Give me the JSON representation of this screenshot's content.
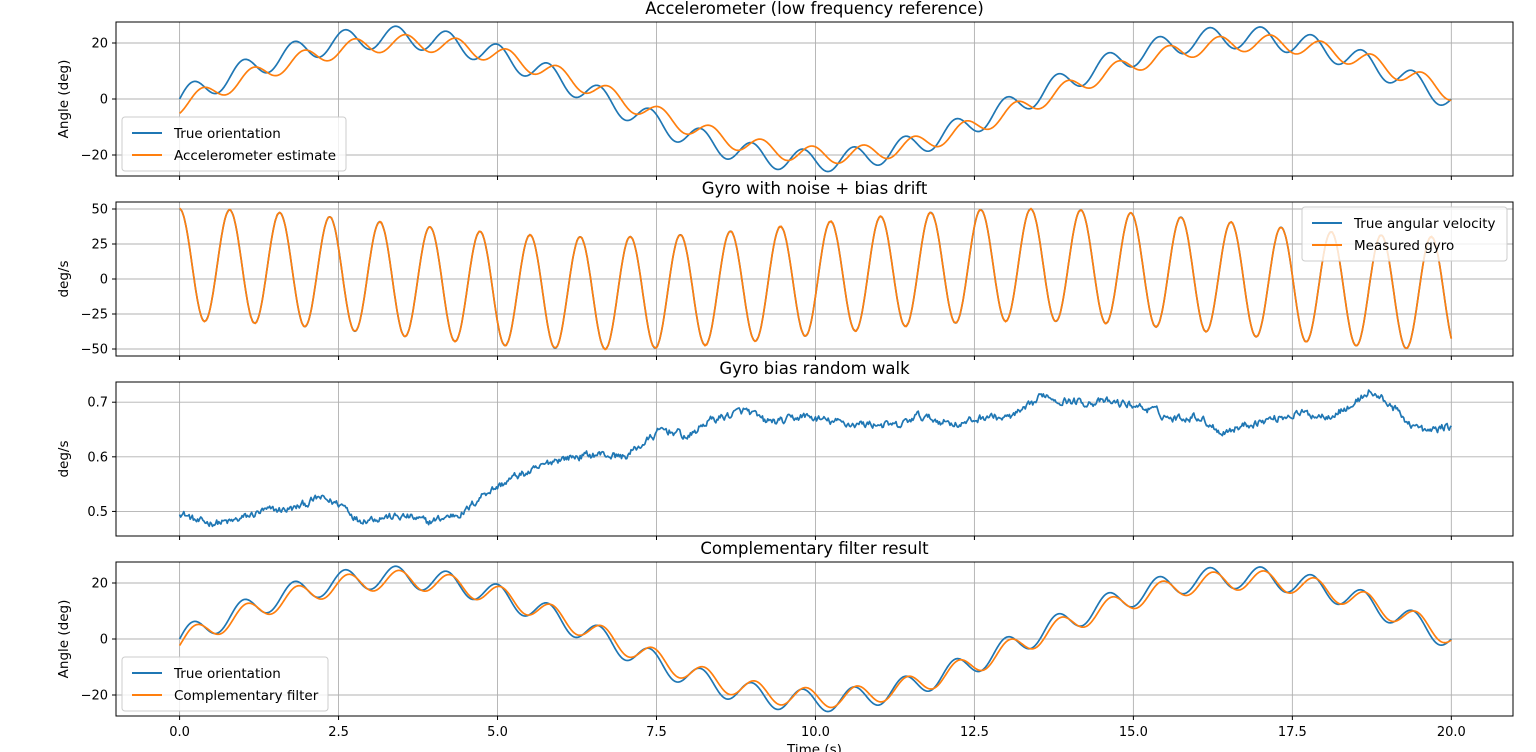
{
  "chart_data": [
    {
      "type": "line",
      "title": "Accelerometer (low frequency reference)",
      "xlabel": "",
      "ylabel": "Angle (deg)",
      "xlim": [
        -1,
        20.97
      ],
      "ylim": [
        -27.5,
        27.5
      ],
      "x_ticks": [
        0,
        2.5,
        5,
        7.5,
        10,
        12.5,
        15,
        17.5,
        20
      ],
      "x_tick_labels": [],
      "y_ticks": [
        -20,
        0,
        20
      ],
      "y_tick_labels": [
        "−20",
        "0",
        "20"
      ],
      "grid": true,
      "legend": "lower-left",
      "series": [
        {
          "name": "True orientation",
          "color": "#1f77b4",
          "model": "true"
        },
        {
          "name": "Accelerometer estimate",
          "color": "#ff7f0e",
          "model": "accel"
        }
      ]
    },
    {
      "type": "line",
      "title": "Gyro with noise + bias drift",
      "xlabel": "",
      "ylabel": "deg/s",
      "xlim": [
        -1,
        20.97
      ],
      "ylim": [
        -55,
        55
      ],
      "x_ticks": [
        0,
        2.5,
        5,
        7.5,
        10,
        12.5,
        15,
        17.5,
        20
      ],
      "x_tick_labels": [],
      "y_ticks": [
        -50,
        -25,
        0,
        25,
        50
      ],
      "y_tick_labels": [
        "−50",
        "−25",
        "0",
        "25",
        "50"
      ],
      "grid": true,
      "legend": "upper-right",
      "series": [
        {
          "name": "True angular velocity",
          "color": "#1f77b4",
          "model": "rate"
        },
        {
          "name": "Measured gyro",
          "color": "#ff7f0e",
          "model": "rate"
        }
      ]
    },
    {
      "type": "line",
      "title": "Gyro bias random walk",
      "xlabel": "",
      "ylabel": "deg/s",
      "xlim": [
        -1,
        20.97
      ],
      "ylim": [
        0.455,
        0.737
      ],
      "x_ticks": [
        0,
        2.5,
        5,
        7.5,
        10,
        12.5,
        15,
        17.5,
        20
      ],
      "x_tick_labels": [],
      "y_ticks": [
        0.5,
        0.6,
        0.7
      ],
      "y_tick_labels": [
        "0.5",
        "0.6",
        "0.7"
      ],
      "grid": true,
      "legend": "none",
      "series": [
        {
          "color": "#1f77b4",
          "model": "bias",
          "x": [
            0,
            0.3,
            0.8,
            1.3,
            1.8,
            2.2,
            2.6,
            2.8,
            3.2,
            3.6,
            3.9,
            4.2,
            4.5,
            4.8,
            5.0,
            5.3,
            5.6,
            5.9,
            6.2,
            6.6,
            7.0,
            7.3,
            7.6,
            7.8,
            8.0,
            8.3,
            8.6,
            8.9,
            9.2,
            9.5,
            9.8,
            10.2,
            10.6,
            11.0,
            11.3,
            11.6,
            12.0,
            12.3,
            12.7,
            13.0,
            13.3,
            13.6,
            13.8,
            14.2,
            14.6,
            15.0,
            15.3,
            15.6,
            16.0,
            16.4,
            16.8,
            17.2,
            17.6,
            18.0,
            18.4,
            18.7,
            19.0,
            19.3,
            19.6,
            19.9,
            20.0
          ],
          "y": [
            0.5,
            0.48,
            0.48,
            0.5,
            0.505,
            0.525,
            0.51,
            0.485,
            0.49,
            0.49,
            0.48,
            0.49,
            0.5,
            0.535,
            0.545,
            0.565,
            0.575,
            0.595,
            0.6,
            0.605,
            0.6,
            0.625,
            0.65,
            0.645,
            0.635,
            0.665,
            0.675,
            0.685,
            0.665,
            0.665,
            0.675,
            0.665,
            0.66,
            0.66,
            0.655,
            0.675,
            0.665,
            0.66,
            0.675,
            0.67,
            0.685,
            0.715,
            0.705,
            0.7,
            0.7,
            0.695,
            0.685,
            0.67,
            0.675,
            0.645,
            0.66,
            0.67,
            0.68,
            0.675,
            0.69,
            0.72,
            0.7,
            0.665,
            0.645,
            0.655,
            0.655
          ]
        }
      ]
    },
    {
      "type": "line",
      "title": "Complementary filter result",
      "xlabel": "Time (s)",
      "ylabel": "Angle (deg)",
      "xlim": [
        -1,
        20.97
      ],
      "ylim": [
        -27.5,
        27.5
      ],
      "x_ticks": [
        0,
        2.5,
        5,
        7.5,
        10,
        12.5,
        15,
        17.5,
        20
      ],
      "x_tick_labels": [
        "0.0",
        "2.5",
        "5.0",
        "7.5",
        "10.0",
        "12.5",
        "15.0",
        "17.5",
        "20.0"
      ],
      "y_ticks": [
        -20,
        0,
        20
      ],
      "y_tick_labels": [
        "−20",
        "0",
        "20"
      ],
      "grid": true,
      "legend": "lower-left",
      "series": [
        {
          "name": "True orientation",
          "color": "#1f77b4",
          "model": "true"
        },
        {
          "name": "Complementary filter",
          "color": "#ff7f0e",
          "model": "filter"
        }
      ]
    }
  ]
}
